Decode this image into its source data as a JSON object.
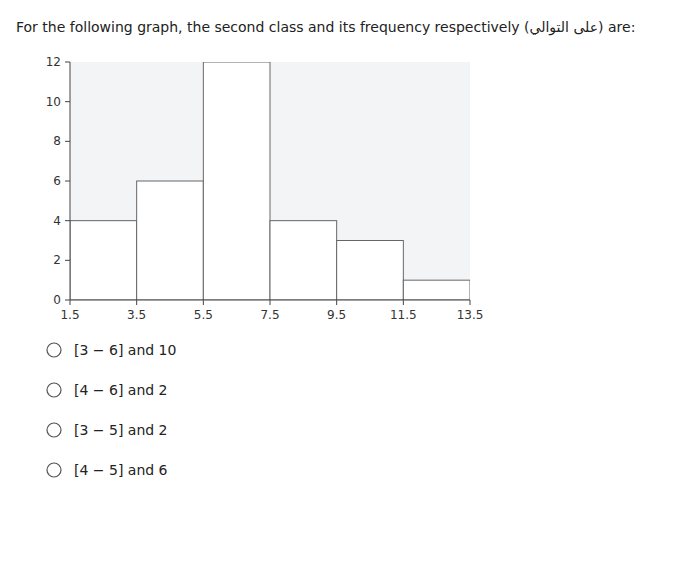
{
  "chart_data": {
    "type": "histogram",
    "title": "For the following graph, the second class and its frequency respectively (على التوالي) are:",
    "bins": [
      1.5,
      3.5,
      5.5,
      7.5,
      9.5,
      11.5,
      13.5
    ],
    "values": [
      4,
      6,
      12,
      4,
      3,
      1
    ],
    "color": "#ffffff",
    "xlim": [
      1.5,
      13.5
    ],
    "ylim": [
      0,
      12
    ],
    "xticks": [
      1.5,
      3.5,
      5.5,
      7.5,
      9.5,
      11.5,
      13.5
    ],
    "yticks": [
      0,
      2,
      4,
      6,
      8,
      10,
      12
    ],
    "annotations": [
      "[3 − 6] and 10",
      "[4 − 6] and 2",
      "[3 − 5] and 2",
      "[4 − 5] and 6"
    ]
  }
}
